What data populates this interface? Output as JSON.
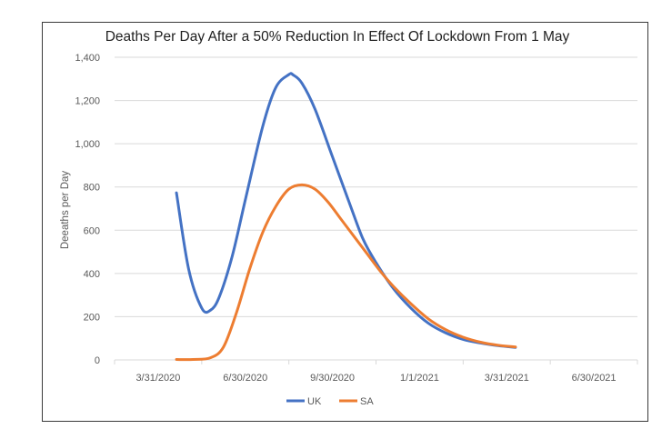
{
  "chart_data": {
    "type": "line",
    "title": "Deaths Per Day After a 50% Reduction In Effect Of Lockdown From 1 May",
    "xlabel": "",
    "ylabel": "Deeaths per Day",
    "ylim": [
      0,
      1400
    ],
    "y_ticks": [
      0,
      200,
      400,
      600,
      800,
      1000,
      1200,
      1400
    ],
    "y_tick_labels": [
      "0",
      "200",
      "400",
      "600",
      "800",
      "1,000",
      "1,200",
      "1,400"
    ],
    "x_tick_labels": [
      "3/31/2020",
      "6/30/2020",
      "9/30/2020",
      "1/1/2021",
      "3/31/2021",
      "6/30/2021"
    ],
    "grid": true,
    "legend_position": "bottom",
    "estimated": true,
    "estimation_note": "Values read from curve pixels against the y gridlines; no data labels are shown. Peak and endpoint values are directly measured; intermediate points are interpolated (about +/-20-30 deaths/day).",
    "x_units": "quarters since 3/31/2020",
    "series": [
      {
        "name": "UK",
        "color": "#4472C4",
        "x": [
          0.71,
          0.85,
          1.0,
          1.1,
          1.2,
          1.35,
          1.5,
          1.7,
          1.85,
          2.0,
          2.05,
          2.15,
          2.3,
          2.5,
          2.7,
          2.85,
          3.0,
          3.2,
          3.4,
          3.6,
          3.8,
          4.0,
          4.2,
          4.4,
          4.6
        ],
        "values": [
          773,
          420,
          240,
          230,
          290,
          480,
          740,
          1080,
          1260,
          1320,
          1318,
          1280,
          1160,
          940,
          720,
          560,
          450,
          330,
          240,
          170,
          125,
          95,
          78,
          66,
          58
        ]
      },
      {
        "name": "SA",
        "color": "#ED7D31",
        "x": [
          0.71,
          0.9,
          1.1,
          1.25,
          1.4,
          1.55,
          1.7,
          1.85,
          2.0,
          2.15,
          2.3,
          2.45,
          2.6,
          2.75,
          2.9,
          3.05,
          3.2,
          3.4,
          3.6,
          3.8,
          4.0,
          4.2,
          4.4,
          4.6
        ],
        "values": [
          2,
          2,
          10,
          60,
          220,
          420,
          590,
          710,
          790,
          810,
          790,
          730,
          650,
          570,
          490,
          410,
          340,
          260,
          190,
          140,
          105,
          82,
          68,
          60
        ]
      }
    ]
  }
}
